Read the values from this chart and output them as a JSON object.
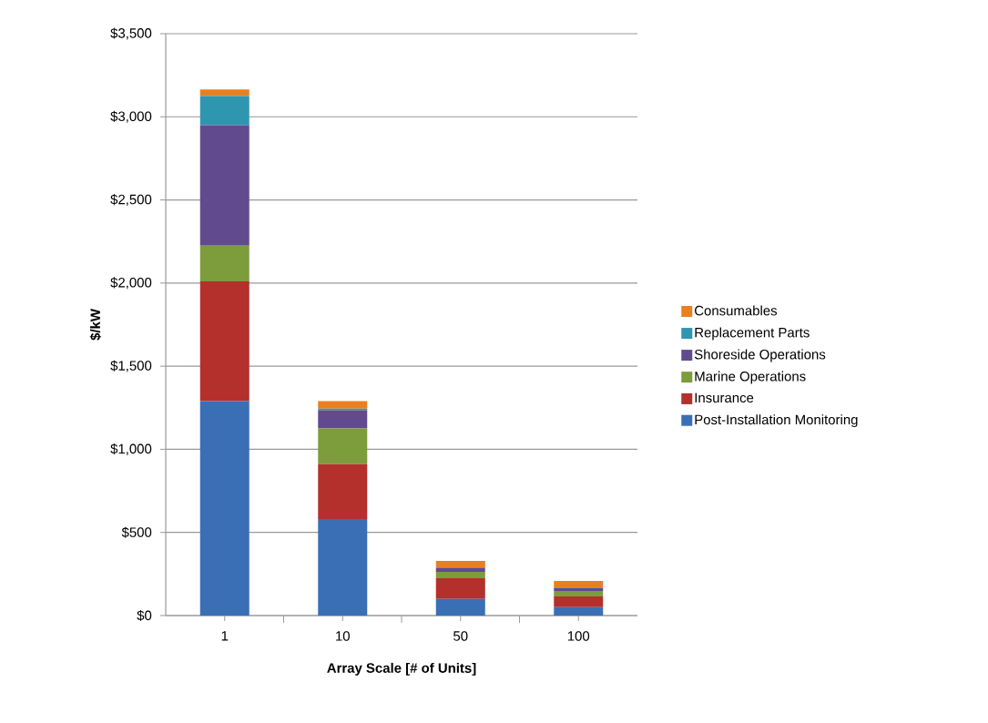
{
  "chart_data": {
    "type": "bar",
    "stacked": true,
    "xlabel": "Array Scale [# of Units]",
    "ylabel": "$/kW",
    "categories": [
      "1",
      "10",
      "50",
      "100"
    ],
    "series": [
      {
        "name": "Post-Installation Monitoring",
        "color": "#3a6fb5",
        "values": [
          1290,
          580,
          100,
          50
        ]
      },
      {
        "name": "Insurance",
        "color": "#b3302d",
        "values": [
          720,
          330,
          125,
          65
        ]
      },
      {
        "name": "Marine Operations",
        "color": "#7d9c3c",
        "values": [
          215,
          215,
          38,
          33
        ]
      },
      {
        "name": "Shoreside Operations",
        "color": "#614a8d",
        "values": [
          725,
          110,
          24,
          16
        ]
      },
      {
        "name": "Replacement Parts",
        "color": "#2f96b0",
        "values": [
          175,
          10,
          3,
          4
        ]
      },
      {
        "name": "Consumables",
        "color": "#e8801f",
        "values": [
          40,
          45,
          39,
          40
        ]
      }
    ],
    "ylim": [
      0,
      3500
    ],
    "yticks": [
      {
        "value": 0,
        "label": "$0"
      },
      {
        "value": 500,
        "label": "$500"
      },
      {
        "value": 1000,
        "label": "$1,000"
      },
      {
        "value": 1500,
        "label": "$1,500"
      },
      {
        "value": 2000,
        "label": "$2,000"
      },
      {
        "value": 2500,
        "label": "$2,500"
      },
      {
        "value": 3000,
        "label": "$3,000"
      },
      {
        "value": 3500,
        "label": "$3,500"
      }
    ],
    "grid": "y",
    "legend": "right"
  }
}
